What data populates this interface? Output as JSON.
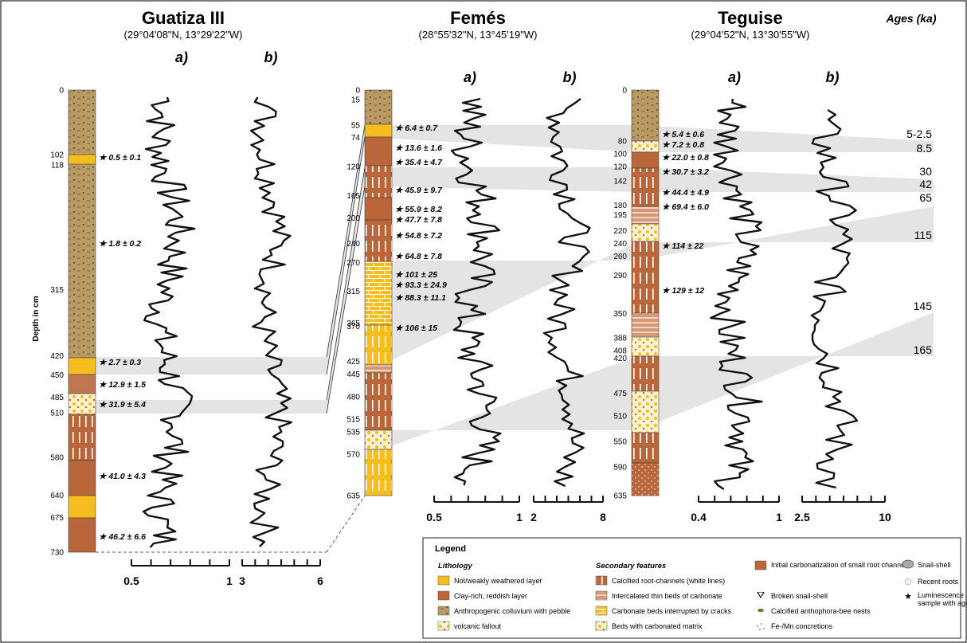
{
  "figure": {
    "ages_heading": "Ages (ka)",
    "depth_label": "Depth in cm",
    "panel_a": "a)",
    "panel_b": "b)"
  },
  "sections": [
    {
      "name": "Guatiza III",
      "coords": "(29°04'08\"N, 13°29'22\"W)",
      "depth_ticks": [
        "0",
        "102",
        "118",
        "315",
        "420",
        "450",
        "485",
        "510",
        "580",
        "640",
        "675",
        "730"
      ],
      "ages": [
        "0.5 ± 0.1",
        "1.8 ± 0.2",
        "2.7 ± 0.3",
        "12.9 ± 1.5",
        "31.9 ± 5.4",
        "41.0 ± 4.3",
        "46.2 ± 6.6"
      ],
      "axis_a": [
        "0.5",
        "1"
      ],
      "axis_b": [
        "3",
        "6"
      ]
    },
    {
      "name": "Femés",
      "coords": "(28°55'32\"N, 13°45'19\"W)",
      "depth_ticks": [
        "0",
        "15",
        "55",
        "74",
        "120",
        "165",
        "200",
        "240",
        "270",
        "315",
        "365",
        "370",
        "425",
        "445",
        "480",
        "515",
        "535",
        "570",
        "635"
      ],
      "ages": [
        "6.4 ± 0.7",
        "13.6 ± 1.6",
        "35.4 ± 4.7",
        "45.9 ± 9.7",
        "55.9 ± 8.2",
        "47.7 ± 7.8",
        "54.8 ± 7.2",
        "64.8 ± 7.8",
        "101 ± 25",
        "93.3 ± 24.9",
        "88.3 ± 11.1",
        "106 ± 15"
      ],
      "axis_a": [
        "0.5",
        "1"
      ],
      "axis_b": [
        "2",
        "8"
      ]
    },
    {
      "name": "Teguise",
      "coords": "(29°04'52\"N, 13°30'55\"W)",
      "depth_ticks": [
        "0",
        "80",
        "100",
        "120",
        "142",
        "180",
        "195",
        "220",
        "240",
        "260",
        "290",
        "350",
        "388",
        "408",
        "420",
        "475",
        "510",
        "550",
        "590",
        "635"
      ],
      "ages": [
        "5.4 ± 0.6",
        "7.2 ± 0.8",
        "22.0 ± 0.8",
        "30.7 ± 3.2",
        "44.4 ± 4.9",
        "69.4 ± 6.0",
        "114 ± 22",
        "129 ± 12"
      ],
      "axis_a": [
        "0.4",
        "1"
      ],
      "axis_b": [
        "2.5",
        "10"
      ]
    }
  ],
  "age_labels": [
    "5-2.5",
    "8.5",
    "30",
    "42",
    "65",
    "115",
    "145",
    "165"
  ],
  "legend": {
    "title": "Legend",
    "lithology_heading": "Lithology",
    "lithology": [
      {
        "label": "Not/weakly weathered layer",
        "color": "#f5bd1e"
      },
      {
        "label": "Clay-rich, reddish layer",
        "color": "#b8663a"
      },
      {
        "label": "Anthropogenic colluvium with pebble",
        "color": "#b99a63"
      },
      {
        "label": "volcanic fallout",
        "color": "#ffffff"
      }
    ],
    "secondary_heading": "Secondary features",
    "secondary": [
      "Calcified root-channels (white lines)",
      "Intercalated thin beds of carbonate",
      "Carbonate beds interrupted  by cracks",
      "Beds with carbonated matrix"
    ],
    "third": [
      "Initial carbonatization of small root channels",
      "Broken snail-shell",
      "Calcified anthophora-bee nests",
      "Fe-/Mn concretions"
    ],
    "fourth": [
      "Snail-shell",
      "Recent roots",
      "Luminescence sample with age"
    ]
  },
  "colors": {
    "yellow": "#f5bd1e",
    "brown": "#b8663a",
    "colluvium": "#b99a63",
    "band": "#e4e4e4"
  }
}
